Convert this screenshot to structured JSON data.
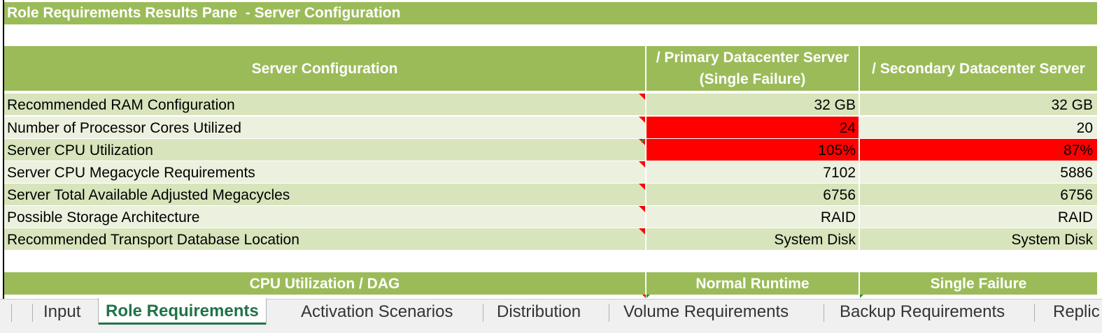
{
  "window": {
    "title": "Role Requirements Results Pane  - Server Configuration"
  },
  "colors": {
    "header_green": "#9bbb59",
    "row_dark": "#d8e4bc",
    "row_light": "#ebf1de",
    "alert_red": "#ff0000",
    "active_tab_green": "#217346"
  },
  "server_config": {
    "headers": {
      "label": "Server Configuration",
      "primary_line1": "/ Primary Datacenter Server",
      "primary_line2": "(Single Failure)",
      "secondary": "/ Secondary Datacenter Server"
    },
    "rows": [
      {
        "label": "Recommended RAM Configuration",
        "primary": "32 GB",
        "secondary": "32 GB",
        "primary_alert": false,
        "secondary_alert": false
      },
      {
        "label": "Number of Processor Cores Utilized",
        "primary": "24",
        "secondary": "20",
        "primary_alert": true,
        "secondary_alert": false
      },
      {
        "label": "Server CPU Utilization",
        "primary": "105%",
        "secondary": "87%",
        "primary_alert": true,
        "secondary_alert": true
      },
      {
        "label": "Server CPU Megacycle Requirements",
        "primary": "7102",
        "secondary": "5886",
        "primary_alert": false,
        "secondary_alert": false
      },
      {
        "label": "Server Total Available Adjusted Megacycles",
        "primary": "6756",
        "secondary": "6756",
        "primary_alert": false,
        "secondary_alert": false
      },
      {
        "label": "Possible Storage Architecture",
        "primary": "RAID",
        "secondary": "RAID",
        "primary_alert": false,
        "secondary_alert": false
      },
      {
        "label": "Recommended Transport Database Location",
        "primary": "System Disk",
        "secondary": "System Disk",
        "primary_alert": false,
        "secondary_alert": false
      }
    ]
  },
  "cpu_dag": {
    "headers": {
      "label": "CPU Utilization / DAG",
      "normal": "Normal Runtime",
      "failure": "Single Failure"
    }
  },
  "sheet_tabs": {
    "items": [
      "Input",
      "Role Requirements",
      "Activation Scenarios",
      "Distribution",
      "Volume Requirements",
      "Backup Requirements",
      "Replic"
    ],
    "active": "Role Requirements"
  }
}
